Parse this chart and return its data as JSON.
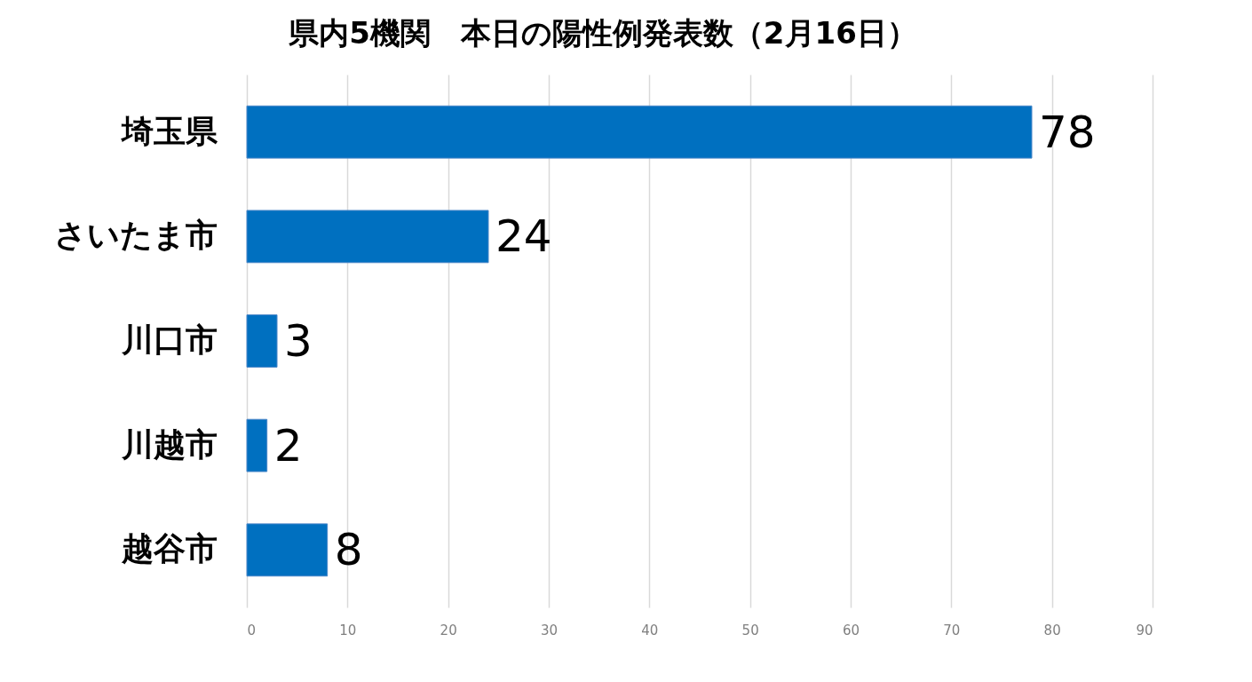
{
  "chart_data": {
    "type": "bar",
    "orientation": "horizontal",
    "title": "県内5機関　本日の陽性例発表数（2月16日）",
    "categories": [
      "埼玉県",
      "さいたま市",
      "川口市",
      "川越市",
      "越谷市"
    ],
    "values": [
      78,
      24,
      3,
      2,
      8
    ],
    "color": "#0070c0",
    "xlim": [
      0,
      90
    ],
    "xticks": [
      0,
      10,
      20,
      30,
      40,
      50,
      60,
      70,
      80,
      90
    ],
    "grid": "x",
    "data_labels": true
  }
}
